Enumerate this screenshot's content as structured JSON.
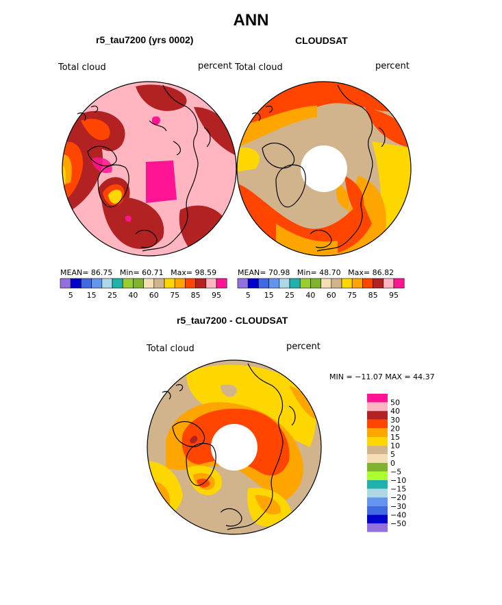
{
  "title": "ANN",
  "panels": {
    "model": {
      "title": "r5_tau7200 (yrs 0002)",
      "left_label": "Total cloud",
      "right_label": "percent",
      "mean_label": "MEAN=",
      "mean_value": "86.75",
      "min_label": "Min=",
      "min_value": "60.71",
      "max_label": "Max=",
      "max_value": "98.59"
    },
    "obs": {
      "title": "CLOUDSAT",
      "left_label": "Total cloud",
      "right_label": "percent",
      "mean_label": "MEAN=",
      "mean_value": "70.98",
      "min_label": "Min=",
      "min_value": "48.70",
      "max_label": "Max=",
      "max_value": "86.82"
    },
    "diff": {
      "title": "r5_tau7200 - CLOUDSAT",
      "left_label": "Total cloud",
      "right_label": "percent",
      "minmax_text": "MIN = −11.07 MAX =  44.37"
    }
  },
  "colors": {
    "abs_scale": [
      "#9370db",
      "#0000cd",
      "#4169e1",
      "#6495ed",
      "#add8e6",
      "#20b2aa",
      "#9acd32",
      "#7fb32d",
      "#f5deb3",
      "#d2b48c",
      "#ffd700",
      "#ffa500",
      "#ff4500",
      "#b22222",
      "#ffb6c1",
      "#ff1493"
    ],
    "diff_scale": [
      "#9370db",
      "#0000cd",
      "#4169e1",
      "#6495ed",
      "#add8e6",
      "#20b2aa",
      "#adff2f",
      "#7fb32d",
      "#f5deb3",
      "#d2b48c",
      "#ffd700",
      "#ffa500",
      "#ff4500",
      "#b22222",
      "#ffb6c1",
      "#ff1493"
    ],
    "land_outline": "#000000"
  },
  "chart_data": [
    {
      "type": "heatmap",
      "title": "r5_tau7200 (yrs 0002)",
      "projection": "polar stereographic (north pole)",
      "variable": "Total cloud",
      "units": "percent",
      "colorbar_ticks": [
        "5",
        "15",
        "25",
        "40",
        "60",
        "75",
        "85",
        "95"
      ],
      "colorbar_levels": [
        5,
        10,
        15,
        20,
        25,
        30,
        40,
        50,
        60,
        70,
        75,
        80,
        85,
        90,
        95
      ],
      "mean": 86.75,
      "min": 60.71,
      "max": 98.59
    },
    {
      "type": "heatmap",
      "title": "CLOUDSAT",
      "projection": "polar stereographic (north pole)",
      "variable": "Total cloud",
      "units": "percent",
      "colorbar_ticks": [
        "5",
        "15",
        "25",
        "40",
        "60",
        "75",
        "85",
        "95"
      ],
      "colorbar_levels": [
        5,
        10,
        15,
        20,
        25,
        30,
        40,
        50,
        60,
        70,
        75,
        80,
        85,
        90,
        95
      ],
      "mean": 70.98,
      "min": 48.7,
      "max": 86.82
    },
    {
      "type": "heatmap",
      "title": "r5_tau7200 - CLOUDSAT",
      "projection": "polar stereographic (north pole)",
      "variable": "Total cloud",
      "units": "percent",
      "colorbar_ticks": [
        "50",
        "40",
        "30",
        "20",
        "15",
        "10",
        "5",
        "0",
        "−5",
        "−10",
        "−15",
        "−20",
        "−30",
        "−40",
        "−50"
      ],
      "min": -11.07,
      "max": 44.37
    }
  ]
}
